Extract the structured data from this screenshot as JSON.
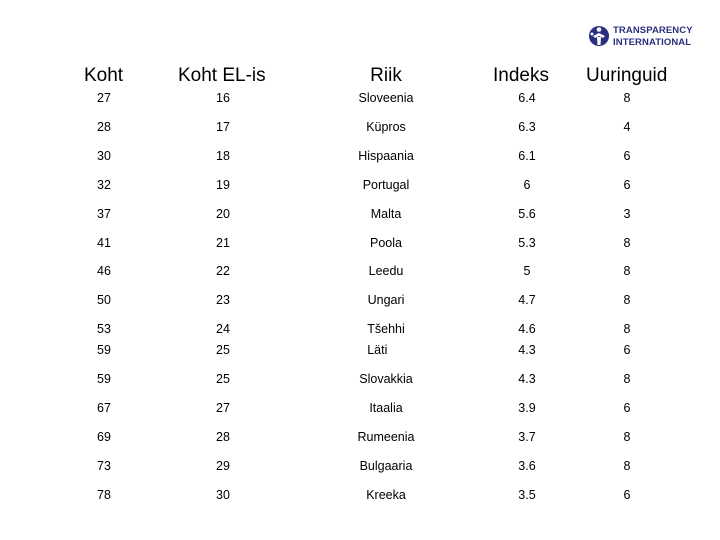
{
  "logo": {
    "icon": "transparency-international-logo-icon",
    "line1": "TRANSPARENCY",
    "line2": "INTERNATIONAL",
    "color": "#2a2f7f"
  },
  "table": {
    "headers": [
      "Koht",
      "Koht EL-is",
      "Riik",
      "Indeks",
      "Uuringuid"
    ],
    "rows": [
      {
        "koht": "27",
        "koht_el": "16",
        "riik": "Sloveenia",
        "indeks": "6.4",
        "uuringuid": "8"
      },
      {
        "koht": "28",
        "koht_el": "17",
        "riik": "Küpros",
        "indeks": "6.3",
        "uuringuid": "4"
      },
      {
        "koht": "30",
        "koht_el": "18",
        "riik": "Hispaania",
        "indeks": "6.1",
        "uuringuid": "6"
      },
      {
        "koht": "32",
        "koht_el": "19",
        "riik": "Portugal",
        "indeks": "6",
        "uuringuid": "6"
      },
      {
        "koht": "37",
        "koht_el": "20",
        "riik": "Malta",
        "indeks": "5.6",
        "uuringuid": "3"
      },
      {
        "koht": "41",
        "koht_el": "21",
        "riik": "Poola",
        "indeks": "5.3",
        "uuringuid": "8"
      },
      {
        "koht": "46",
        "koht_el": "22",
        "riik": "Leedu",
        "indeks": "5",
        "uuringuid": "8"
      },
      {
        "koht": "50",
        "koht_el": "23",
        "riik": "Ungari",
        "indeks": "4.7",
        "uuringuid": "8"
      },
      {
        "koht": "53",
        "koht_el": "24",
        "riik": "Tšehhi",
        "indeks": "4.6",
        "uuringuid": "8",
        "koht_2": "59",
        "koht_el_2": "25",
        "riik_2": "Läti",
        "indeks_2": "4.3",
        "uuringuid_2": "6"
      },
      {
        "koht": "59",
        "koht_el": "25",
        "riik": "Slovakkia",
        "indeks": "4.3",
        "uuringuid": "8"
      },
      {
        "koht": "67",
        "koht_el": "27",
        "riik": "Itaalia",
        "indeks": "3.9",
        "uuringuid": "6"
      },
      {
        "koht": "69",
        "koht_el": "28",
        "riik": "Rumeenia",
        "indeks": "3.7",
        "uuringuid": "8"
      },
      {
        "koht": "73",
        "koht_el": "29",
        "riik": "Bulgaaria",
        "indeks": "3.6",
        "uuringuid": "8"
      },
      {
        "koht": "78",
        "koht_el": "30",
        "riik": "Kreeka",
        "indeks": "3.5",
        "uuringuid": "6"
      }
    ]
  }
}
